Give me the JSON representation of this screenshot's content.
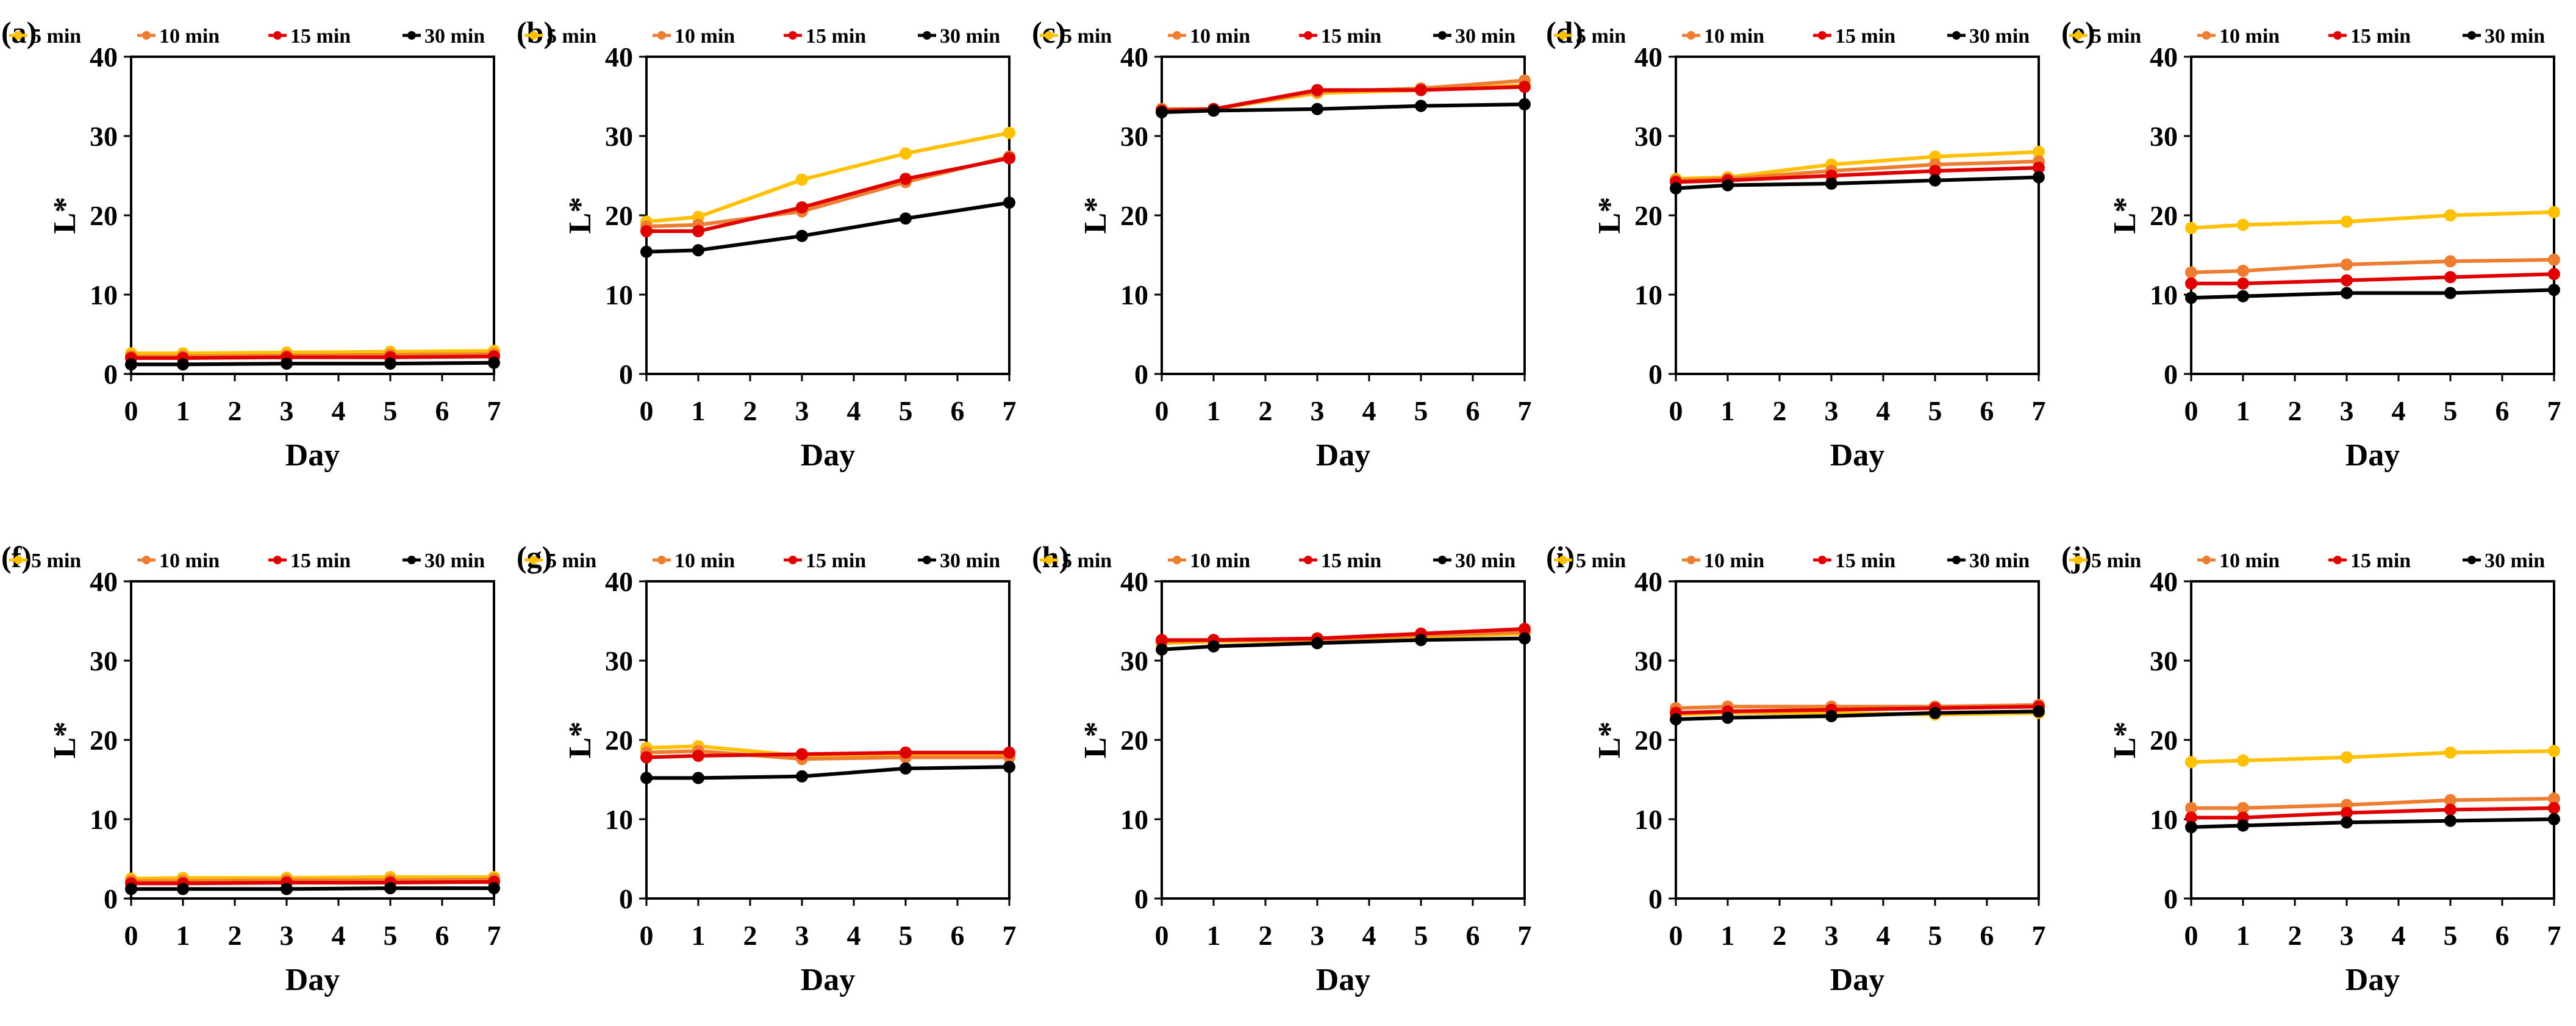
{
  "chart_data": [
    {
      "type": "line",
      "label": "(a)",
      "xlabel": "Day",
      "ylabel": "L*",
      "x": [
        0,
        1,
        3,
        5,
        7
      ],
      "xticks": [
        "0",
        "1",
        "2",
        "3",
        "4",
        "5",
        "6",
        "7"
      ],
      "yticks": [
        "0",
        "10",
        "20",
        "30",
        "40"
      ],
      "xlim": [
        0,
        7
      ],
      "ylim": [
        0,
        40
      ],
      "grid": false,
      "legend": "top",
      "series": [
        {
          "name": "5 min",
          "values": [
            2.6,
            2.6,
            2.7,
            2.8,
            2.9
          ]
        },
        {
          "name": "10 min",
          "values": [
            2.2,
            2.2,
            2.3,
            2.4,
            2.5
          ]
        },
        {
          "name": "15 min",
          "values": [
            2.0,
            2.0,
            2.1,
            2.1,
            2.2
          ]
        },
        {
          "name": "30 min",
          "values": [
            1.2,
            1.2,
            1.3,
            1.3,
            1.4
          ]
        }
      ]
    },
    {
      "type": "line",
      "label": "(b)",
      "xlabel": "Day",
      "ylabel": "L*",
      "x": [
        0,
        1,
        3,
        5,
        7
      ],
      "xticks": [
        "0",
        "1",
        "2",
        "3",
        "4",
        "5",
        "6",
        "7"
      ],
      "yticks": [
        "0",
        "10",
        "20",
        "30",
        "40"
      ],
      "xlim": [
        0,
        7
      ],
      "ylim": [
        0,
        40
      ],
      "grid": false,
      "legend": "top",
      "series": [
        {
          "name": "5 min",
          "values": [
            19.2,
            19.8,
            24.5,
            27.8,
            30.4
          ]
        },
        {
          "name": "10 min",
          "values": [
            18.6,
            18.8,
            20.5,
            24.2,
            27.4
          ]
        },
        {
          "name": "15 min",
          "values": [
            18.0,
            18.0,
            21.0,
            24.6,
            27.2
          ]
        },
        {
          "name": "30 min",
          "values": [
            15.4,
            15.6,
            17.4,
            19.6,
            21.6
          ]
        }
      ]
    },
    {
      "type": "line",
      "label": "(c)",
      "xlabel": "Day",
      "ylabel": "L*",
      "x": [
        0,
        1,
        3,
        5,
        7
      ],
      "xticks": [
        "0",
        "1",
        "2",
        "3",
        "4",
        "5",
        "6",
        "7"
      ],
      "yticks": [
        "0",
        "10",
        "20",
        "30",
        "40"
      ],
      "xlim": [
        0,
        7
      ],
      "ylim": [
        0,
        40
      ],
      "grid": false,
      "legend": "top",
      "series": [
        {
          "name": "5 min",
          "values": [
            33.2,
            33.4,
            35.4,
            35.8,
            36.4
          ]
        },
        {
          "name": "10 min",
          "values": [
            33.4,
            33.4,
            35.6,
            36.0,
            37.0
          ]
        },
        {
          "name": "15 min",
          "values": [
            33.2,
            33.4,
            35.8,
            35.8,
            36.2
          ]
        },
        {
          "name": "30 min",
          "values": [
            33.0,
            33.2,
            33.4,
            33.8,
            34.0
          ]
        }
      ]
    },
    {
      "type": "line",
      "label": "(d)",
      "xlabel": "Day",
      "ylabel": "L*",
      "x": [
        0,
        1,
        3,
        5,
        7
      ],
      "xticks": [
        "0",
        "1",
        "2",
        "3",
        "4",
        "5",
        "6",
        "7"
      ],
      "yticks": [
        "0",
        "10",
        "20",
        "30",
        "40"
      ],
      "xlim": [
        0,
        7
      ],
      "ylim": [
        0,
        40
      ],
      "grid": false,
      "legend": "top",
      "series": [
        {
          "name": "5 min",
          "values": [
            24.6,
            24.8,
            26.4,
            27.4,
            28.0
          ]
        },
        {
          "name": "10 min",
          "values": [
            24.4,
            24.6,
            25.6,
            26.4,
            26.8
          ]
        },
        {
          "name": "15 min",
          "values": [
            24.2,
            24.4,
            25.0,
            25.6,
            26.0
          ]
        },
        {
          "name": "30 min",
          "values": [
            23.4,
            23.8,
            24.0,
            24.4,
            24.8
          ]
        }
      ]
    },
    {
      "type": "line",
      "label": "(e)",
      "xlabel": "Day",
      "ylabel": "L*",
      "x": [
        0,
        1,
        3,
        5,
        7
      ],
      "xticks": [
        "0",
        "1",
        "2",
        "3",
        "4",
        "5",
        "6",
        "7"
      ],
      "yticks": [
        "0",
        "10",
        "20",
        "30",
        "40"
      ],
      "xlim": [
        0,
        7
      ],
      "ylim": [
        0,
        40
      ],
      "grid": false,
      "legend": "top",
      "series": [
        {
          "name": "5 min",
          "values": [
            18.4,
            18.8,
            19.2,
            20.0,
            20.4
          ]
        },
        {
          "name": "10 min",
          "values": [
            12.8,
            13.0,
            13.8,
            14.2,
            14.4
          ]
        },
        {
          "name": "15 min",
          "values": [
            11.4,
            11.4,
            11.8,
            12.2,
            12.6
          ]
        },
        {
          "name": "30 min",
          "values": [
            9.6,
            9.8,
            10.2,
            10.2,
            10.6
          ]
        }
      ]
    },
    {
      "type": "line",
      "label": "(f)",
      "xlabel": "Day",
      "ylabel": "L*",
      "x": [
        0,
        1,
        3,
        5,
        7
      ],
      "xticks": [
        "0",
        "1",
        "2",
        "3",
        "4",
        "5",
        "6",
        "7"
      ],
      "yticks": [
        "0",
        "10",
        "20",
        "30",
        "40"
      ],
      "xlim": [
        0,
        7
      ],
      "ylim": [
        0,
        40
      ],
      "grid": false,
      "legend": "top",
      "series": [
        {
          "name": "5 min",
          "values": [
            2.5,
            2.6,
            2.6,
            2.7,
            2.7
          ]
        },
        {
          "name": "10 min",
          "values": [
            2.2,
            2.2,
            2.3,
            2.3,
            2.4
          ]
        },
        {
          "name": "15 min",
          "values": [
            1.9,
            1.9,
            2.0,
            2.0,
            2.1
          ]
        },
        {
          "name": "30 min",
          "values": [
            1.2,
            1.2,
            1.2,
            1.3,
            1.3
          ]
        }
      ]
    },
    {
      "type": "line",
      "label": "(g)",
      "xlabel": "Day",
      "ylabel": "L*",
      "x": [
        0,
        1,
        3,
        5,
        7
      ],
      "xticks": [
        "0",
        "1",
        "2",
        "3",
        "4",
        "5",
        "6",
        "7"
      ],
      "yticks": [
        "0",
        "10",
        "20",
        "30",
        "40"
      ],
      "xlim": [
        0,
        7
      ],
      "ylim": [
        0,
        40
      ],
      "grid": false,
      "legend": "top",
      "series": [
        {
          "name": "5 min",
          "values": [
            19.0,
            19.2,
            18.0,
            18.0,
            18.2
          ]
        },
        {
          "name": "10 min",
          "values": [
            18.4,
            18.6,
            17.6,
            17.8,
            17.8
          ]
        },
        {
          "name": "15 min",
          "values": [
            17.8,
            18.0,
            18.2,
            18.4,
            18.4
          ]
        },
        {
          "name": "30 min",
          "values": [
            15.2,
            15.2,
            15.4,
            16.4,
            16.6
          ]
        }
      ]
    },
    {
      "type": "line",
      "label": "(h)",
      "xlabel": "Day",
      "ylabel": "L*",
      "x": [
        0,
        1,
        3,
        5,
        7
      ],
      "xticks": [
        "0",
        "1",
        "2",
        "3",
        "4",
        "5",
        "6",
        "7"
      ],
      "yticks": [
        "0",
        "10",
        "20",
        "30",
        "40"
      ],
      "xlim": [
        0,
        7
      ],
      "ylim": [
        0,
        40
      ],
      "grid": false,
      "legend": "top",
      "series": [
        {
          "name": "5 min",
          "values": [
            32.2,
            32.4,
            32.6,
            33.0,
            33.4
          ]
        },
        {
          "name": "10 min",
          "values": [
            32.4,
            32.6,
            32.6,
            33.2,
            33.6
          ]
        },
        {
          "name": "15 min",
          "values": [
            32.6,
            32.6,
            32.8,
            33.4,
            34.0
          ]
        },
        {
          "name": "30 min",
          "values": [
            31.4,
            31.8,
            32.2,
            32.6,
            32.8
          ]
        }
      ]
    },
    {
      "type": "line",
      "label": "(i)",
      "xlabel": "Day",
      "ylabel": "L*",
      "x": [
        0,
        1,
        3,
        5,
        7
      ],
      "xticks": [
        "0",
        "1",
        "2",
        "3",
        "4",
        "5",
        "6",
        "7"
      ],
      "yticks": [
        "0",
        "10",
        "20",
        "30",
        "40"
      ],
      "xlim": [
        0,
        7
      ],
      "ylim": [
        0,
        40
      ],
      "grid": false,
      "legend": "top",
      "series": [
        {
          "name": "5 min",
          "values": [
            23.2,
            23.4,
            23.4,
            23.2,
            23.4
          ]
        },
        {
          "name": "10 min",
          "values": [
            24.0,
            24.2,
            24.2,
            24.2,
            24.4
          ]
        },
        {
          "name": "15 min",
          "values": [
            23.4,
            23.6,
            23.8,
            24.0,
            24.2
          ]
        },
        {
          "name": "30 min",
          "values": [
            22.6,
            22.8,
            23.0,
            23.4,
            23.6
          ]
        }
      ]
    },
    {
      "type": "line",
      "label": "(j)",
      "xlabel": "Day",
      "ylabel": "L*",
      "x": [
        0,
        1,
        3,
        5,
        7
      ],
      "xticks": [
        "0",
        "1",
        "2",
        "3",
        "4",
        "5",
        "6",
        "7"
      ],
      "yticks": [
        "0",
        "10",
        "20",
        "30",
        "40"
      ],
      "xlim": [
        0,
        7
      ],
      "ylim": [
        0,
        40
      ],
      "grid": false,
      "legend": "top",
      "series": [
        {
          "name": "5 min",
          "values": [
            17.2,
            17.4,
            17.8,
            18.4,
            18.6
          ]
        },
        {
          "name": "10 min",
          "values": [
            11.4,
            11.4,
            11.8,
            12.4,
            12.6
          ]
        },
        {
          "name": "15 min",
          "values": [
            10.2,
            10.2,
            10.8,
            11.2,
            11.4
          ]
        },
        {
          "name": "30 min",
          "values": [
            9.0,
            9.2,
            9.6,
            9.8,
            10.0
          ]
        }
      ]
    }
  ],
  "colors": {
    "5 min": "#FFC000",
    "10 min": "#ED7D31",
    "15 min": "#E00000",
    "30 min": "#000000"
  }
}
